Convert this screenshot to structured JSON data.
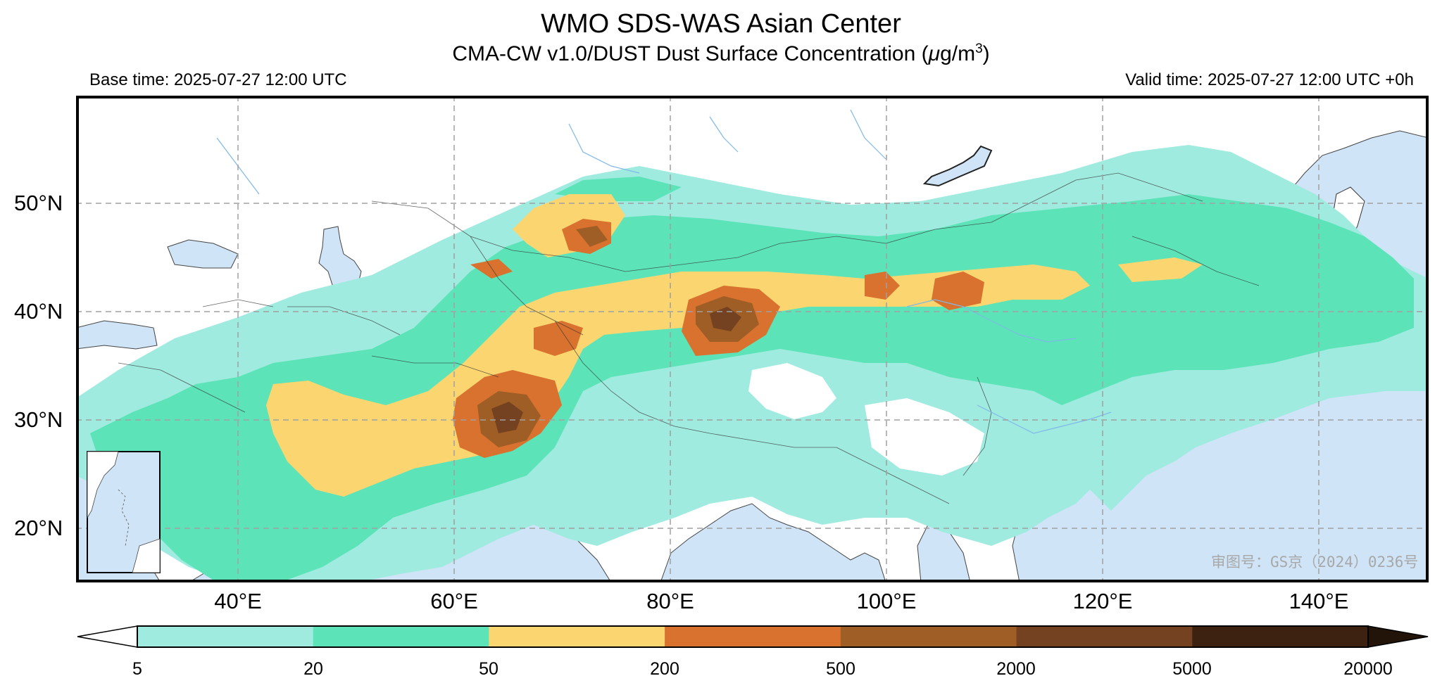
{
  "header": {
    "title": "WMO SDS-WAS Asian Center",
    "subtitle_main": "CMA-CW v1.0/DUST Dust Surface Concentration (",
    "subtitle_mu": "μ",
    "subtitle_unit": "g/m",
    "subtitle_exp": "3",
    "subtitle_close": ")",
    "base_time": "Base time: 2025-07-27 12:00 UTC",
    "valid_time": "Valid time: 2025-07-27 12:00 UTC +0h"
  },
  "map": {
    "lat_labels": [
      "50°N",
      "40°N",
      "30°N",
      "20°N"
    ],
    "lon_labels": [
      "40°E",
      "60°E",
      "80°E",
      "100°E",
      "120°E",
      "140°E"
    ],
    "watermark": "审图号：GS京（2024）0236号",
    "colors": {
      "ocean": "#cfe4f6",
      "land": "#ffffff",
      "border": "#333333",
      "river": "#7fb8e6",
      "grid": "#a0a0a0"
    }
  },
  "colorbar": {
    "ticks": [
      "5",
      "20",
      "50",
      "200",
      "500",
      "2000",
      "5000",
      "20000"
    ],
    "colors": [
      "#a0ebe0",
      "#5ce4b8",
      "#fbd670",
      "#d9722e",
      "#9e5e26",
      "#744220",
      "#3d2212"
    ],
    "under_color": "#ffffff",
    "over_color": "#231409"
  }
}
